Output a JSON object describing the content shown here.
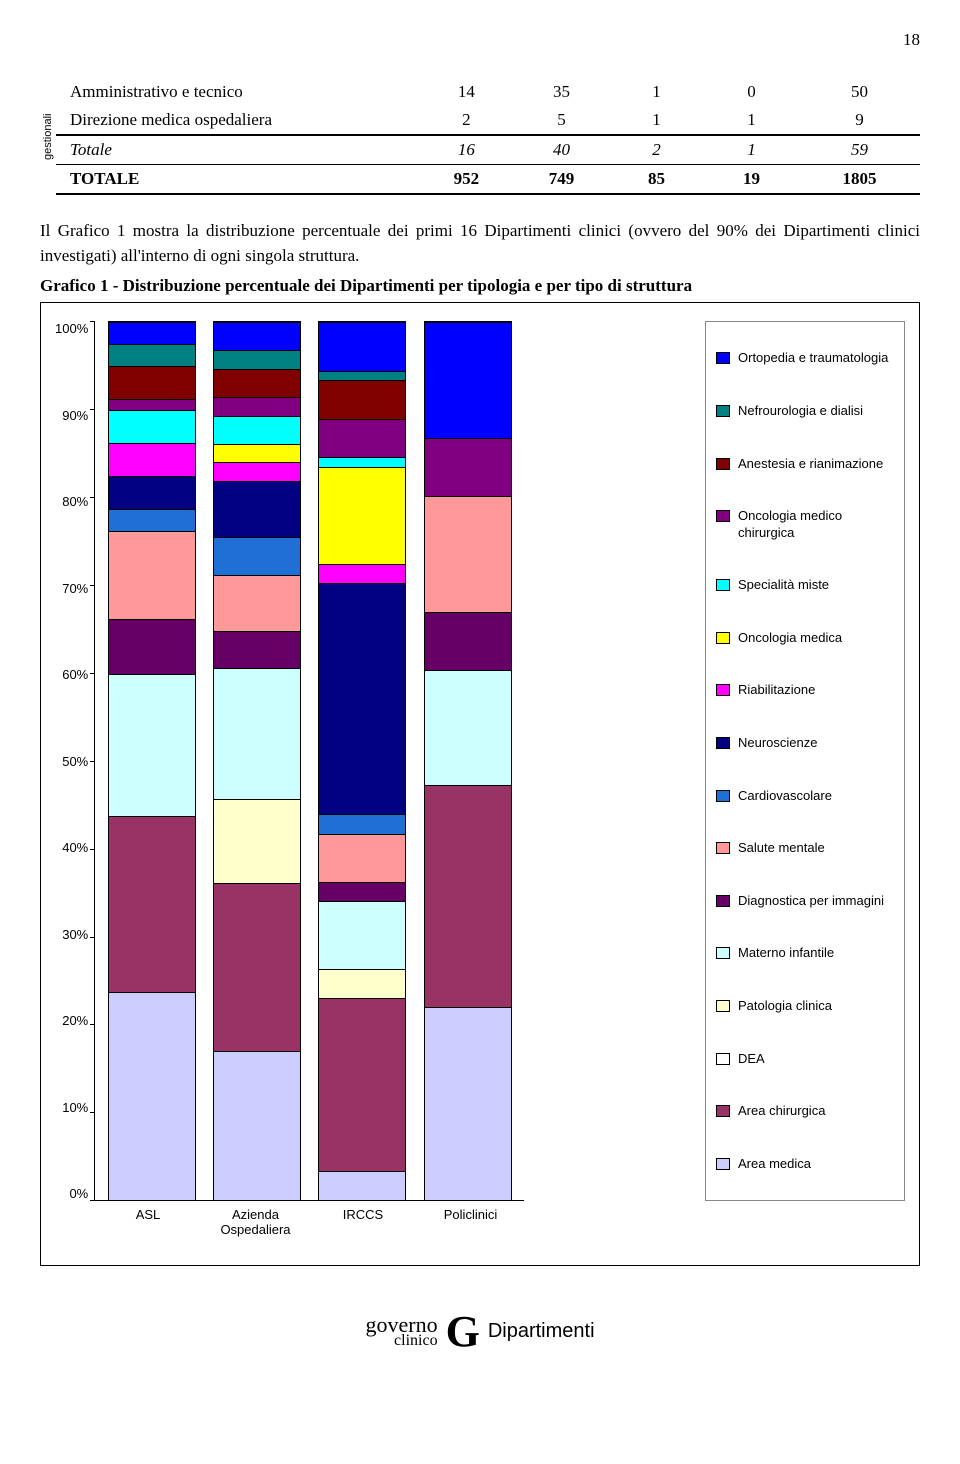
{
  "page_number": "18",
  "table": {
    "side_label": "gestionali",
    "rows": [
      {
        "cells": [
          "Amministrativo e tecnico",
          "14",
          "35",
          "1",
          "0",
          "50"
        ],
        "cls": ""
      },
      {
        "cells": [
          "Direzione medica ospedaliera",
          "2",
          "5",
          "1",
          "1",
          "9"
        ],
        "cls": ""
      },
      {
        "cells": [
          "Totale",
          "16",
          "40",
          "2",
          "1",
          "59"
        ],
        "cls": "italic thick-top row-border-bottom"
      },
      {
        "cells": [
          "TOTALE",
          "952",
          "749",
          "85",
          "19",
          "1805"
        ],
        "cls": "bold thick-bottom"
      }
    ],
    "col_widths": [
      "42%",
      "11%",
      "11%",
      "11%",
      "11%",
      "14%"
    ]
  },
  "paragraph": "Il Grafico 1 mostra la distribuzione percentuale dei primi 16 Dipartimenti clinici (ovvero del 90% dei Dipartimenti clinici investigati) all'interno di ogni singola struttura.",
  "chart_title": "Grafico 1 - Distribuzione percentuale dei Dipartimenti per tipologia e per tipo di struttura",
  "chart": {
    "type": "stacked-bar-100",
    "y_ticks": [
      "100%",
      "90%",
      "80%",
      "70%",
      "60%",
      "50%",
      "40%",
      "30%",
      "20%",
      "10%",
      "0%"
    ],
    "categories": [
      "ASL",
      "Azienda Ospedaliera",
      "IRCCS",
      "Policlinici"
    ],
    "series": [
      {
        "key": "ortopedia",
        "label": "Ortopedia e traumatologia",
        "color": "#0000ff"
      },
      {
        "key": "nefro",
        "label": "Nefrourologia e dialisi",
        "color": "#008080"
      },
      {
        "key": "anestesia",
        "label": "Anestesia e rianimazione",
        "color": "#800000"
      },
      {
        "key": "onco_chir",
        "label": "Oncologia medico chirurgica",
        "color": "#800080"
      },
      {
        "key": "spec_miste",
        "label": "Specialità miste",
        "color": "#00ffff"
      },
      {
        "key": "onco_med",
        "label": "Oncologia medica",
        "color": "#ffff00"
      },
      {
        "key": "riabil",
        "label": "Riabilitazione",
        "color": "#ff00ff"
      },
      {
        "key": "neuro",
        "label": "Neuroscienze",
        "color": "#000080"
      },
      {
        "key": "cardio",
        "label": "Cardiovascolare",
        "color": "#1f6fd4"
      },
      {
        "key": "salute_ment",
        "label": "Salute mentale",
        "color": "#ff9999"
      },
      {
        "key": "diag_img",
        "label": "Diagnostica per immagini",
        "color": "#660066"
      },
      {
        "key": "materno",
        "label": "Materno infantile",
        "color": "#ccffff"
      },
      {
        "key": "pat_clinica",
        "label": "Patologia clinica",
        "color": "#ffffcc"
      },
      {
        "key": "dea",
        "label": "DEA",
        "color": "#ffffff"
      },
      {
        "key": "area_chir",
        "label": "Area chirurgica",
        "color": "#993366"
      },
      {
        "key": "area_med",
        "label": "Area medica",
        "color": "#ccccff"
      }
    ],
    "data": {
      "ASL": {
        "ortopedia": 2,
        "nefro": 2,
        "anestesia": 3,
        "onco_chir": 1,
        "spec_miste": 3,
        "onco_med": 0,
        "riabil": 3,
        "neuro": 3,
        "cardio": 2,
        "salute_ment": 8,
        "diag_img": 5,
        "materno": 13,
        "pat_clinica": 0,
        "dea": 0,
        "area_chir": 16,
        "area_med": 19
      },
      "Azienda Ospedaliera": {
        "ortopedia": 3,
        "nefro": 2,
        "anestesia": 3,
        "onco_chir": 2,
        "spec_miste": 3,
        "onco_med": 2,
        "riabil": 2,
        "neuro": 6,
        "cardio": 4,
        "salute_ment": 6,
        "diag_img": 4,
        "materno": 14,
        "pat_clinica": 9,
        "dea": 0,
        "area_chir": 18,
        "area_med": 16
      },
      "IRCCS": {
        "ortopedia": 5,
        "nefro": 1,
        "anestesia": 4,
        "onco_chir": 4,
        "spec_miste": 1,
        "onco_med": 10,
        "riabil": 2,
        "neuro": 24,
        "cardio": 2,
        "salute_ment": 5,
        "diag_img": 2,
        "materno": 7,
        "pat_clinica": 3,
        "dea": 0,
        "area_chir": 18,
        "area_med": 3
      },
      "Policlinici": {
        "ortopedia": 12,
        "nefro": 0,
        "anestesia": 0,
        "onco_chir": 6,
        "spec_miste": 0,
        "onco_med": 0,
        "riabil": 0,
        "neuro": 0,
        "cardio": 0,
        "salute_ment": 12,
        "diag_img": 6,
        "materno": 12,
        "pat_clinica": 0,
        "dea": 0,
        "area_chir": 23,
        "area_med": 20
      }
    }
  },
  "footer": {
    "left_top": "governo",
    "left_bottom": "clinico",
    "glyph": "G",
    "right": "Dipartimenti"
  }
}
